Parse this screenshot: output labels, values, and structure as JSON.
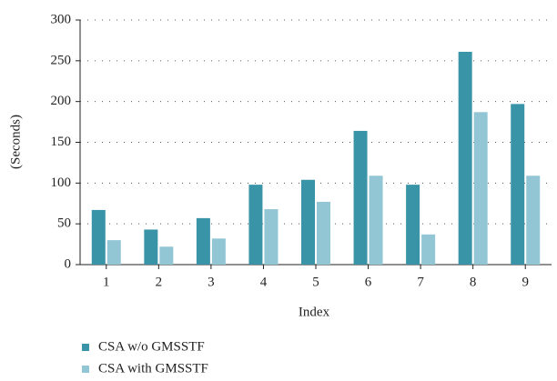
{
  "chart_data": {
    "type": "bar",
    "categories": [
      "1",
      "2",
      "3",
      "4",
      "5",
      "6",
      "7",
      "8",
      "9"
    ],
    "series": [
      {
        "name": "CSA w/o GMSSTF",
        "color": "#3a94a8",
        "values": [
          67,
          43,
          57,
          98,
          104,
          164,
          98,
          261,
          197
        ]
      },
      {
        "name": "CSA with GMSSTF",
        "color": "#93c6d4",
        "values": [
          30,
          22,
          32,
          68,
          77,
          109,
          37,
          187,
          109
        ]
      }
    ],
    "xlabel": "Index",
    "ylabel": "(Seconds)",
    "ylim": [
      0,
      300
    ],
    "yticks": [
      0,
      50,
      100,
      150,
      200,
      250,
      300
    ],
    "grid": true
  }
}
